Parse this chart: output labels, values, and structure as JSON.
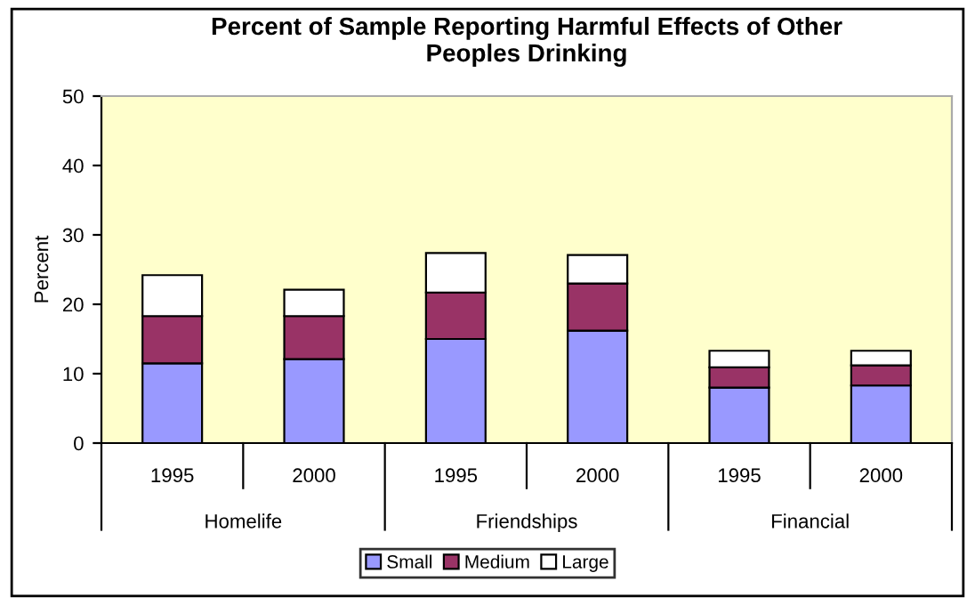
{
  "chart_data": {
    "type": "bar",
    "stacked": true,
    "title": "Percent of Sample Reporting Harmful Effects of Other\nPeoples Drinking",
    "ylabel": "Percent",
    "categories": [
      "1995",
      "2000",
      "1995",
      "2000",
      "1995",
      "2000"
    ],
    "annotations": [
      "Homelife",
      "Friendships",
      "Financial"
    ],
    "series": [
      {
        "name": "Small",
        "color": "#9999ff",
        "values": [
          11.5,
          12.1,
          15.0,
          16.2,
          8.0,
          8.3
        ]
      },
      {
        "name": "Medium",
        "color": "#993366",
        "values": [
          6.8,
          6.2,
          6.7,
          6.8,
          2.9,
          2.9
        ]
      },
      {
        "name": "Large",
        "color": "#ffffff",
        "values": [
          5.9,
          3.8,
          5.7,
          4.1,
          2.4,
          2.1
        ]
      }
    ],
    "ylim": [
      0,
      50
    ],
    "yticks": [
      0,
      10,
      20,
      30,
      40,
      50
    ],
    "grid": false,
    "legend": "bottom"
  }
}
